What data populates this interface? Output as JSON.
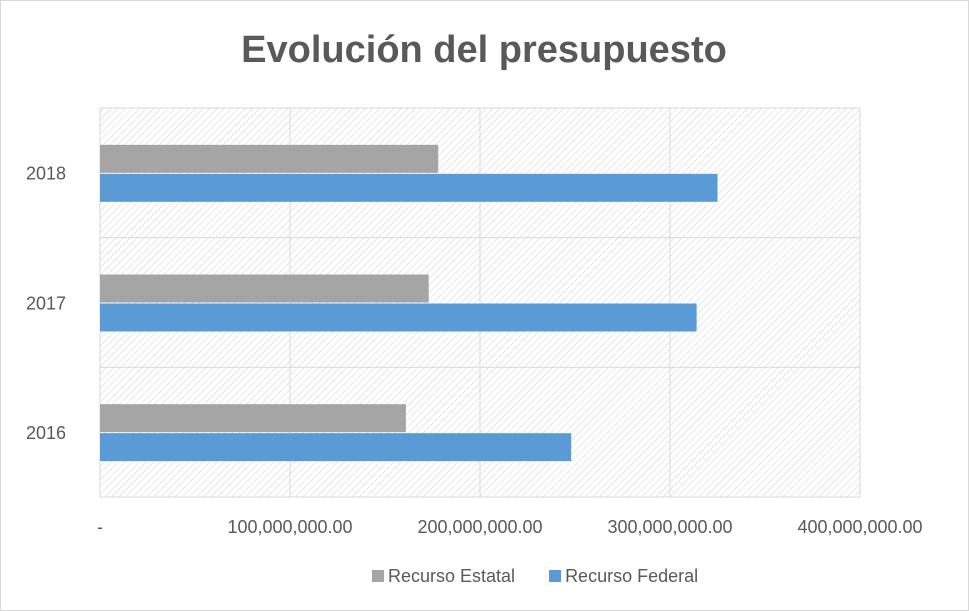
{
  "chart_data": {
    "type": "hbar",
    "title": "Evolución del presupuesto",
    "categories": [
      "2016",
      "2017",
      "2018"
    ],
    "series": [
      {
        "name": "Recurso Estatal",
        "color": "#a5a5a5",
        "values": [
          161000000,
          173000000,
          178000000
        ]
      },
      {
        "name": "Recurso Federal",
        "color": "#5b9bd5",
        "values": [
          248000000,
          314000000,
          325000000
        ]
      }
    ],
    "xlim": [
      0,
      400000000
    ],
    "xticks": [
      {
        "value": 0,
        "label": "-"
      },
      {
        "value": 100000000,
        "label": "100,000,000.00"
      },
      {
        "value": 200000000,
        "label": "200,000,000.00"
      },
      {
        "value": 300000000,
        "label": "300,000,000.00"
      },
      {
        "value": 400000000,
        "label": "400,000,000.00"
      }
    ],
    "grid": true,
    "legend": "bottom"
  }
}
